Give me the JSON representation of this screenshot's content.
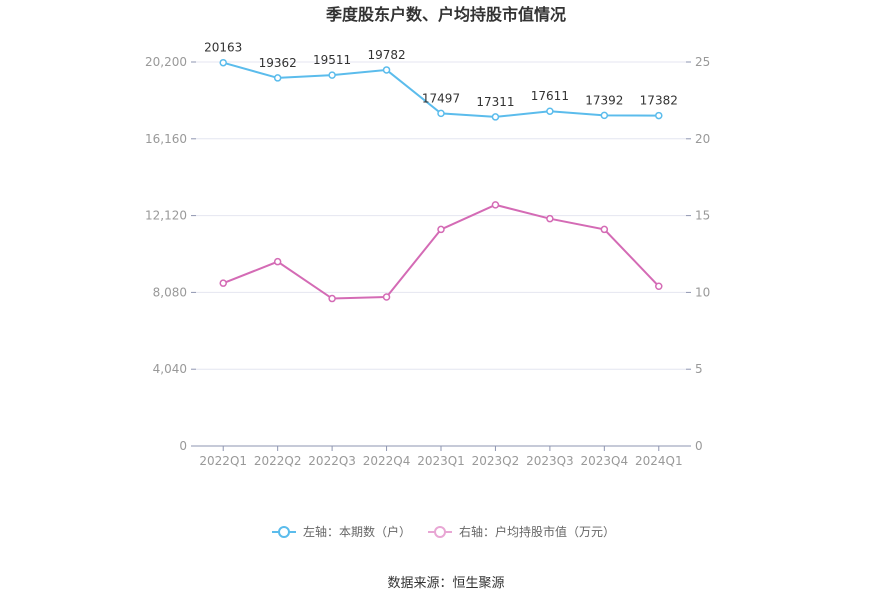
{
  "chart_data": {
    "type": "line",
    "title": "季度股东户数、户均持股市值情况",
    "categories": [
      "2022Q1",
      "2022Q2",
      "2022Q3",
      "2022Q4",
      "2023Q1",
      "2023Q2",
      "2023Q3",
      "2023Q4",
      "2024Q1"
    ],
    "series": [
      {
        "name": "左轴：本期数（户）",
        "axis": "left",
        "color": "#5bbcec",
        "values": [
          20163,
          19362,
          19511,
          19782,
          17497,
          17311,
          17611,
          17392,
          17382
        ],
        "labels": [
          "20163",
          "19362",
          "19511",
          "19782",
          "17497",
          "17311",
          "17611",
          "17392",
          "17382"
        ]
      },
      {
        "name": "右轴：户均持股市值（万元）",
        "axis": "right",
        "color": "#d46bb5",
        "values": [
          10.6,
          12.0,
          9.6,
          9.7,
          14.1,
          15.7,
          14.8,
          14.1,
          10.4
        ]
      }
    ],
    "y_left": {
      "min": 0,
      "max": 20200,
      "ticks": [
        "0",
        "4,040",
        "8,080",
        "12,120",
        "16,160",
        "20,200"
      ],
      "tick_values": [
        0,
        4040,
        8080,
        12120,
        16160,
        20200
      ]
    },
    "y_right": {
      "min": 0,
      "max": 25,
      "ticks": [
        "0",
        "5",
        "10",
        "15",
        "20",
        "25"
      ],
      "tick_values": [
        0,
        5,
        10,
        15,
        20,
        25
      ]
    },
    "grid": true,
    "legend_position": "bottom"
  },
  "source": "数据来源：恒生聚源"
}
